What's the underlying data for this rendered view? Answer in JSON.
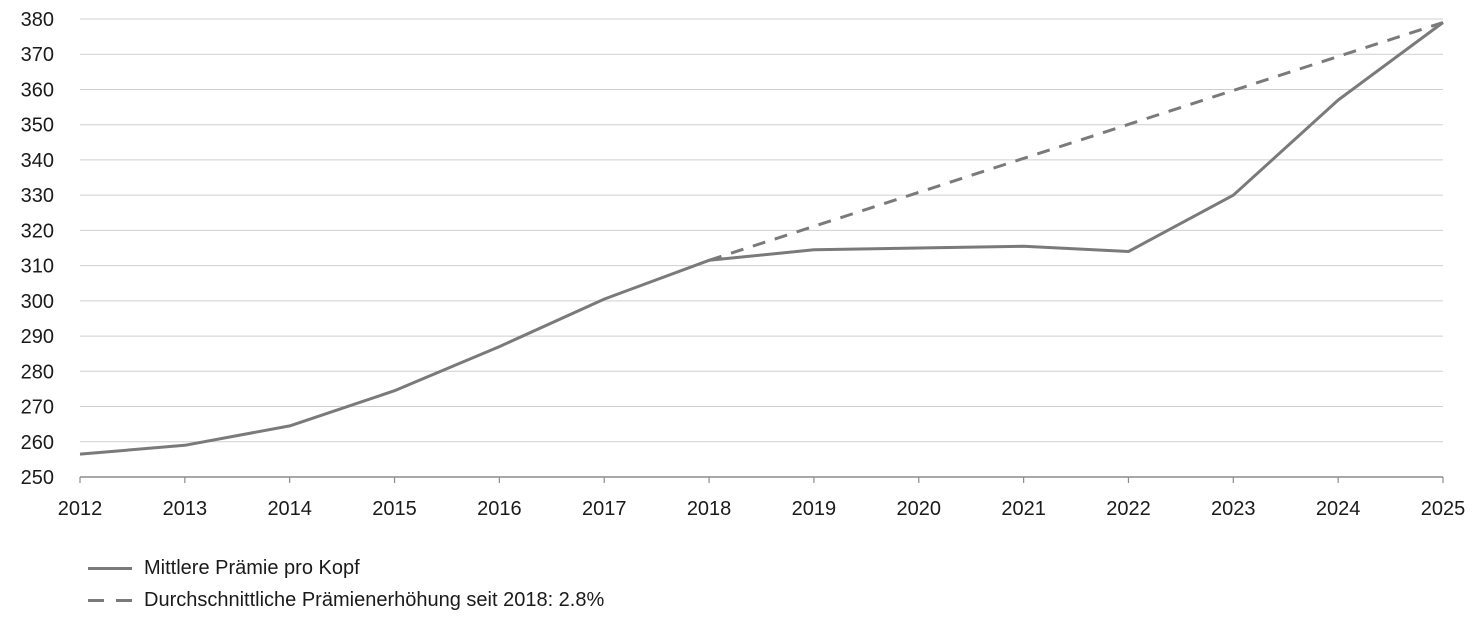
{
  "chart_data": {
    "type": "line",
    "x": [
      "2012",
      "2013",
      "2014",
      "2015",
      "2016",
      "2017",
      "2018",
      "2019",
      "2020",
      "2021",
      "2022",
      "2023",
      "2024",
      "2025"
    ],
    "ylim": [
      250,
      380
    ],
    "yticks": [
      250,
      260,
      270,
      280,
      290,
      300,
      310,
      320,
      330,
      340,
      350,
      360,
      370,
      380
    ],
    "grid": true,
    "legend_position": "bottom-left",
    "series": [
      {
        "name": "Mittlere Prämie pro Kopf",
        "style": "solid",
        "color": "#7a7a7a",
        "x": [
          "2012",
          "2013",
          "2014",
          "2015",
          "2016",
          "2017",
          "2018",
          "2019",
          "2020",
          "2021",
          "2022",
          "2023",
          "2024",
          "2025"
        ],
        "values": [
          256.5,
          259,
          264.5,
          274.5,
          287,
          300.5,
          311.5,
          314.5,
          315,
          315.5,
          314,
          330,
          357,
          379
        ]
      },
      {
        "name": "Durchschnittliche Prämienerhöhung seit 2018: 2.8%",
        "style": "dashed",
        "color": "#7a7a7a",
        "x": [
          "2018",
          "2025"
        ],
        "values": [
          311.5,
          379
        ]
      }
    ]
  }
}
